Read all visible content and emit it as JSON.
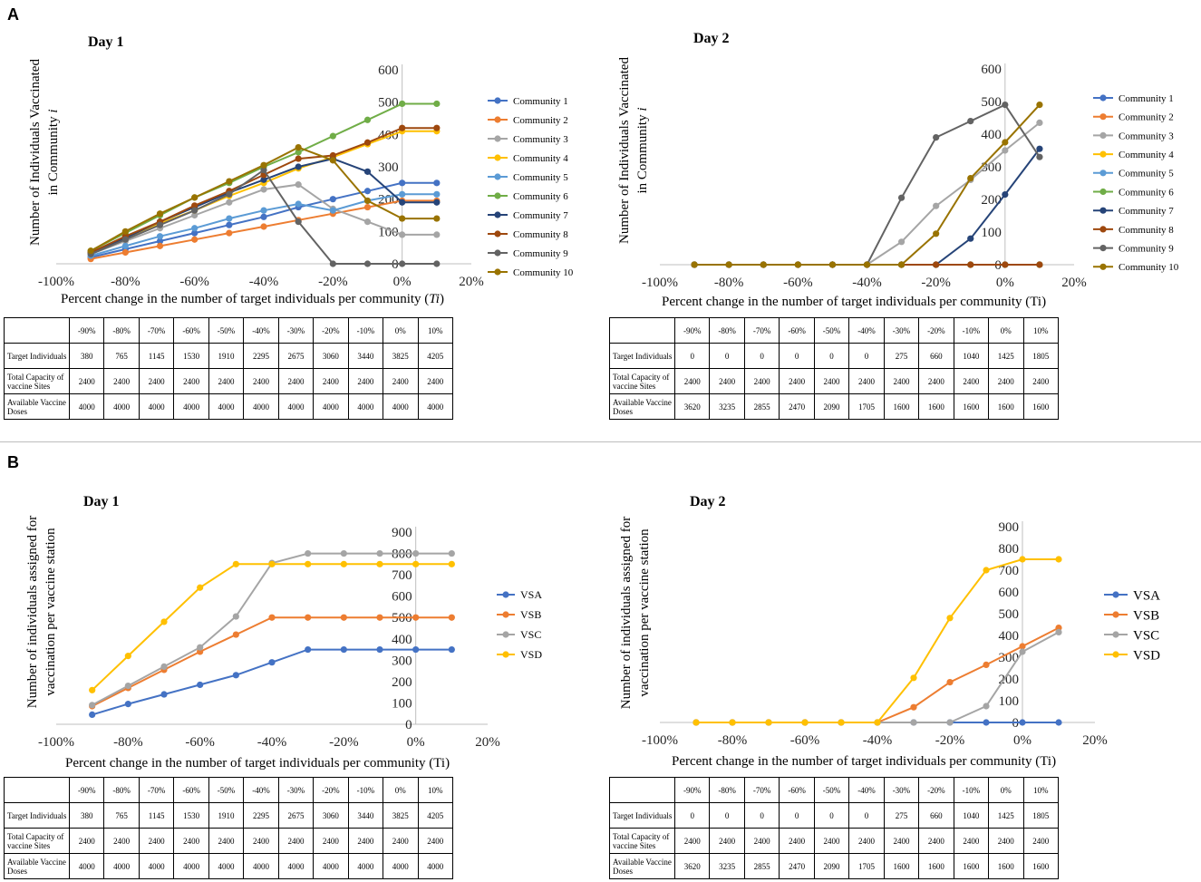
{
  "panels": {
    "A": "A",
    "B": "B"
  },
  "tick_labels": [
    "-90%",
    "-80%",
    "-70%",
    "-60%",
    "-50%",
    "-40%",
    "-30%",
    "-20%",
    "-10%",
    "0%",
    "10%"
  ],
  "table_row_labels": {
    "target": "Target Individuals",
    "capacity": "Total Capacity of vaccine Sites",
    "doses": "Available Vaccine Doses"
  },
  "tables": {
    "day1": {
      "target": [
        "380",
        "765",
        "1145",
        "1530",
        "1910",
        "2295",
        "2675",
        "3060",
        "3440",
        "3825",
        "4205"
      ],
      "capacity": [
        "2400",
        "2400",
        "2400",
        "2400",
        "2400",
        "2400",
        "2400",
        "2400",
        "2400",
        "2400",
        "2400"
      ],
      "doses": [
        "4000",
        "4000",
        "4000",
        "4000",
        "4000",
        "4000",
        "4000",
        "4000",
        "4000",
        "4000",
        "4000"
      ]
    },
    "day2": {
      "target": [
        "0",
        "0",
        "0",
        "0",
        "0",
        "0",
        "275",
        "660",
        "1040",
        "1425",
        "1805"
      ],
      "capacity": [
        "2400",
        "2400",
        "2400",
        "2400",
        "2400",
        "2400",
        "2400",
        "2400",
        "2400",
        "2400",
        "2400"
      ],
      "doses": [
        "3620",
        "3235",
        "2855",
        "2470",
        "2090",
        "1705",
        "1600",
        "1600",
        "1600",
        "1600",
        "1600"
      ]
    }
  },
  "chart_data": [
    {
      "id": "A1",
      "type": "line",
      "title": "Day 1",
      "ylabel": "Number of Individuals Vaccinated in Community i",
      "xlabel": "Percent change in the number of target individuals per community (Ti)",
      "xlim": [
        -100,
        20
      ],
      "ylim": [
        0,
        600
      ],
      "x_ticks": [
        -100,
        -80,
        -60,
        -40,
        -20,
        0,
        20
      ],
      "x_tick_labels": [
        "-100%",
        "-80%",
        "-60%",
        "-40%",
        "-20%",
        "0%",
        "20%"
      ],
      "y_ticks": [
        0,
        100,
        200,
        300,
        400,
        500,
        600
      ],
      "y_tick_labels": [
        "0",
        "100",
        "200",
        "300",
        "400",
        "500",
        "600"
      ],
      "x": [
        -90,
        -80,
        -70,
        -60,
        -50,
        -40,
        -30,
        -20,
        -10,
        0,
        10
      ],
      "series": [
        {
          "name": "Community 1",
          "color": "#4472C4",
          "values": [
            20,
            45,
            70,
            95,
            120,
            145,
            175,
            200,
            225,
            250,
            250
          ]
        },
        {
          "name": "Community 2",
          "color": "#ED7D31",
          "values": [
            15,
            35,
            55,
            75,
            95,
            115,
            135,
            155,
            175,
            195,
            195
          ]
        },
        {
          "name": "Community 3",
          "color": "#A5A5A5",
          "values": [
            30,
            70,
            110,
            150,
            190,
            230,
            245,
            170,
            130,
            90,
            90
          ]
        },
        {
          "name": "Community 4",
          "color": "#FFC000",
          "values": [
            35,
            80,
            125,
            165,
            210,
            250,
            295,
            330,
            370,
            410,
            410
          ]
        },
        {
          "name": "Community 5",
          "color": "#5B9BD5",
          "values": [
            25,
            55,
            85,
            110,
            140,
            165,
            185,
            165,
            195,
            215,
            215
          ]
        },
        {
          "name": "Community 6",
          "color": "#70AD47",
          "values": [
            40,
            95,
            150,
            205,
            250,
            300,
            345,
            395,
            445,
            495,
            495
          ]
        },
        {
          "name": "Community 7",
          "color": "#264478",
          "values": [
            35,
            80,
            130,
            175,
            220,
            260,
            300,
            325,
            285,
            190,
            190
          ]
        },
        {
          "name": "Community 8",
          "color": "#9E480E",
          "values": [
            35,
            85,
            130,
            180,
            225,
            275,
            325,
            335,
            375,
            420,
            420
          ]
        },
        {
          "name": "Community 9",
          "color": "#636363",
          "values": [
            30,
            75,
            120,
            165,
            215,
            290,
            130,
            0,
            0,
            0,
            0
          ]
        },
        {
          "name": "Community 10",
          "color": "#997300",
          "values": [
            40,
            100,
            155,
            205,
            255,
            305,
            360,
            320,
            195,
            140,
            140
          ]
        }
      ]
    },
    {
      "id": "A2",
      "type": "line",
      "title": "Day 2",
      "ylabel": "Number of Individuals Vaccinated in Community i",
      "xlabel": "Percent change in the number of target individuals per community (Ti)",
      "xlim": [
        -100,
        20
      ],
      "ylim": [
        0,
        600
      ],
      "x_ticks": [
        -100,
        -80,
        -60,
        -40,
        -20,
        0,
        20
      ],
      "x_tick_labels": [
        "-100%",
        "-80%",
        "-60%",
        "-40%",
        "-20%",
        "0%",
        "20%"
      ],
      "y_ticks": [
        0,
        100,
        200,
        300,
        400,
        500,
        600
      ],
      "y_tick_labels": [
        "0",
        "100",
        "200",
        "300",
        "400",
        "500",
        "600"
      ],
      "x": [
        -90,
        -80,
        -70,
        -60,
        -50,
        -40,
        -30,
        -20,
        -10,
        0,
        10
      ],
      "series": [
        {
          "name": "Community 1",
          "color": "#4472C4",
          "values": [
            0,
            0,
            0,
            0,
            0,
            0,
            0,
            0,
            0,
            0,
            0
          ]
        },
        {
          "name": "Community 2",
          "color": "#ED7D31",
          "values": [
            0,
            0,
            0,
            0,
            0,
            0,
            0,
            0,
            0,
            0,
            0
          ]
        },
        {
          "name": "Community 3",
          "color": "#A5A5A5",
          "values": [
            0,
            0,
            0,
            0,
            0,
            0,
            70,
            180,
            260,
            350,
            435
          ]
        },
        {
          "name": "Community 4",
          "color": "#FFC000",
          "values": [
            0,
            0,
            0,
            0,
            0,
            0,
            0,
            0,
            0,
            0,
            0
          ]
        },
        {
          "name": "Community 5",
          "color": "#5B9BD5",
          "values": [
            0,
            0,
            0,
            0,
            0,
            0,
            0,
            0,
            0,
            0,
            0
          ]
        },
        {
          "name": "Community 6",
          "color": "#70AD47",
          "values": [
            0,
            0,
            0,
            0,
            0,
            0,
            0,
            0,
            0,
            0,
            0
          ]
        },
        {
          "name": "Community 7",
          "color": "#264478",
          "values": [
            0,
            0,
            0,
            0,
            0,
            0,
            0,
            0,
            80,
            215,
            355
          ]
        },
        {
          "name": "Community 8",
          "color": "#9E480E",
          "values": [
            0,
            0,
            0,
            0,
            0,
            0,
            0,
            0,
            0,
            0,
            0
          ]
        },
        {
          "name": "Community 9",
          "color": "#636363",
          "values": [
            0,
            0,
            0,
            0,
            0,
            0,
            205,
            390,
            440,
            490,
            330
          ]
        },
        {
          "name": "Community 10",
          "color": "#997300",
          "values": [
            0,
            0,
            0,
            0,
            0,
            0,
            0,
            95,
            265,
            375,
            490
          ]
        }
      ]
    },
    {
      "id": "B1",
      "type": "line",
      "title": "Day 1",
      "ylabel": "Number of individuals assigned for vaccination per vaccine station",
      "xlabel": "Percent change in the number of target individuals per community (Ti)",
      "xlim": [
        -100,
        20
      ],
      "ylim": [
        0,
        900
      ],
      "x_ticks": [
        -100,
        -80,
        -60,
        -40,
        -20,
        0,
        20
      ],
      "x_tick_labels": [
        "-100%",
        "-80%",
        "-60%",
        "-40%",
        "-20%",
        "0%",
        "20%"
      ],
      "y_ticks": [
        0,
        100,
        200,
        300,
        400,
        500,
        600,
        700,
        800,
        900
      ],
      "y_tick_labels": [
        "0",
        "100",
        "200",
        "300",
        "400",
        "500",
        "600",
        "700",
        "800",
        "900"
      ],
      "x": [
        -90,
        -80,
        -70,
        -60,
        -50,
        -40,
        -30,
        -20,
        -10,
        0,
        10
      ],
      "series": [
        {
          "name": "VSA",
          "color": "#4472C4",
          "values": [
            45,
            95,
            140,
            185,
            230,
            290,
            350,
            350,
            350,
            350,
            350
          ]
        },
        {
          "name": "VSB",
          "color": "#ED7D31",
          "values": [
            85,
            170,
            255,
            340,
            420,
            500,
            500,
            500,
            500,
            500,
            500
          ]
        },
        {
          "name": "VSC",
          "color": "#A5A5A5",
          "values": [
            90,
            180,
            270,
            360,
            505,
            755,
            800,
            800,
            800,
            800,
            800
          ]
        },
        {
          "name": "VSD",
          "color": "#FFC000",
          "values": [
            160,
            320,
            480,
            640,
            750,
            750,
            750,
            750,
            750,
            750,
            750
          ]
        }
      ]
    },
    {
      "id": "B2",
      "type": "line",
      "title": "Day 2",
      "ylabel": "Number of individuals assigned for vaccination per vaccine station",
      "xlabel": "Percent change in the number of target individuals per community (Ti)",
      "xlim": [
        -100,
        20
      ],
      "ylim": [
        0,
        900
      ],
      "x_ticks": [
        -100,
        -80,
        -60,
        -40,
        -20,
        0,
        20
      ],
      "x_tick_labels": [
        "-100%",
        "-80%",
        "-60%",
        "-40%",
        "-20%",
        "0%",
        "20%"
      ],
      "y_ticks": [
        0,
        100,
        200,
        300,
        400,
        500,
        600,
        700,
        800,
        900
      ],
      "y_tick_labels": [
        "0",
        "100",
        "200",
        "300",
        "400",
        "500",
        "600",
        "700",
        "800",
        "900"
      ],
      "x": [
        -90,
        -80,
        -70,
        -60,
        -50,
        -40,
        -30,
        -20,
        -10,
        0,
        10
      ],
      "series": [
        {
          "name": "VSA",
          "color": "#4472C4",
          "values": [
            0,
            0,
            0,
            0,
            0,
            0,
            0,
            0,
            0,
            0,
            0
          ]
        },
        {
          "name": "VSB",
          "color": "#ED7D31",
          "values": [
            0,
            0,
            0,
            0,
            0,
            0,
            70,
            185,
            265,
            350,
            435
          ]
        },
        {
          "name": "VSC",
          "color": "#A5A5A5",
          "values": [
            0,
            0,
            0,
            0,
            0,
            0,
            0,
            0,
            75,
            325,
            415
          ]
        },
        {
          "name": "VSD",
          "color": "#FFC000",
          "values": [
            0,
            0,
            0,
            0,
            0,
            0,
            205,
            480,
            700,
            750,
            750
          ]
        }
      ]
    }
  ]
}
